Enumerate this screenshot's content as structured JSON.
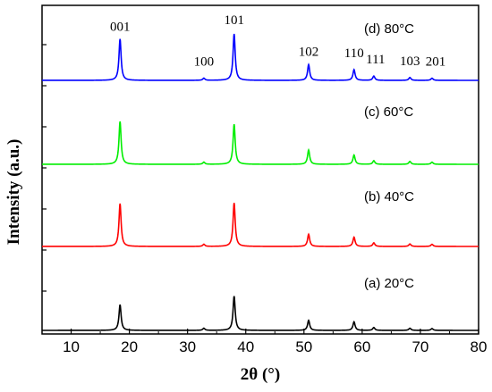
{
  "chart_data": {
    "type": "line",
    "xlabel": "2θ (°)",
    "ylabel": "Intensity (a.u.)",
    "xlim": [
      5,
      80
    ],
    "xticks": [
      10,
      20,
      30,
      40,
      50,
      60,
      70,
      80
    ],
    "grid": false,
    "legend": "none",
    "peaks": [
      {
        "hkl": "001",
        "x": 18.4
      },
      {
        "hkl": "100",
        "x": 32.8
      },
      {
        "hkl": "101",
        "x": 38.0
      },
      {
        "hkl": "102",
        "x": 50.8
      },
      {
        "hkl": "110",
        "x": 58.6
      },
      {
        "hkl": "111",
        "x": 62.0
      },
      {
        "hkl": "103",
        "x": 68.2
      },
      {
        "hkl": "201",
        "x": 72.0
      }
    ],
    "series": [
      {
        "label": "(a) 20°C",
        "color": "#000000",
        "intensities": [
          0.36,
          0.03,
          0.48,
          0.14,
          0.12,
          0.04,
          0.03,
          0.025
        ]
      },
      {
        "label": "(b) 40°C",
        "color": "#ff0000",
        "intensities": [
          0.6,
          0.03,
          0.61,
          0.17,
          0.13,
          0.05,
          0.035,
          0.03
        ]
      },
      {
        "label": "(c) 60°C",
        "color": "#00ee00",
        "intensities": [
          0.6,
          0.03,
          0.56,
          0.2,
          0.13,
          0.05,
          0.04,
          0.03
        ]
      },
      {
        "label": "(d) 80°C",
        "color": "#0000ff",
        "intensities": [
          0.58,
          0.03,
          0.65,
          0.22,
          0.15,
          0.06,
          0.04,
          0.03
        ]
      }
    ]
  }
}
